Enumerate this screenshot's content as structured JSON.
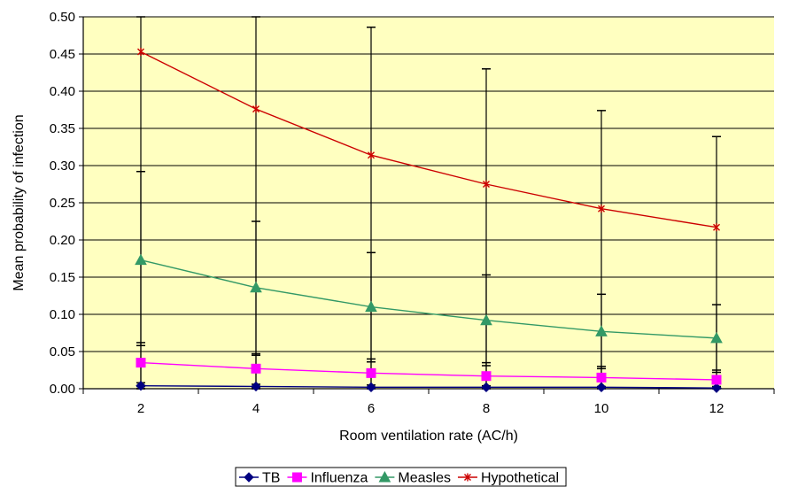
{
  "chart_data": {
    "type": "line",
    "title": "",
    "xlabel": "Room ventilation rate (AC/h)",
    "ylabel": "Mean probability of infection",
    "x": [
      2,
      4,
      6,
      8,
      10,
      12
    ],
    "x_tick_labels": [
      "2",
      "4",
      "6",
      "8",
      "10",
      "12"
    ],
    "y_tick_labels": [
      "0.00",
      "0.05",
      "0.10",
      "0.15",
      "0.20",
      "0.25",
      "0.30",
      "0.35",
      "0.40",
      "0.45",
      "0.50"
    ],
    "ylim": [
      0,
      0.5
    ],
    "grid": "horizontal",
    "legend_position": "bottom",
    "plot_background": "#ffffc0",
    "series": [
      {
        "name": "TB",
        "color": "#000080",
        "marker": "diamond",
        "values": [
          0.004,
          0.003,
          0.002,
          0.002,
          0.002,
          0.001
        ],
        "error_upper": [
          0.008,
          0.006,
          0.005,
          0.004,
          0.003,
          0.003
        ],
        "error_lower": [
          0.0,
          0.0,
          0.0,
          0.0,
          0.0,
          0.0
        ]
      },
      {
        "name": "Influenza",
        "color": "#ff00ff",
        "marker": "square",
        "values": [
          0.035,
          0.027,
          0.021,
          0.017,
          0.015,
          0.012
        ],
        "error_upper": [
          0.062,
          0.047,
          0.04,
          0.035,
          0.03,
          0.025
        ],
        "error_lower": [
          0.003,
          0.002,
          0.002,
          0.001,
          0.001,
          0.001
        ]
      },
      {
        "name": "Measles",
        "color": "#339966",
        "marker": "triangle",
        "values": [
          0.173,
          0.136,
          0.11,
          0.092,
          0.077,
          0.068
        ],
        "error_upper": [
          0.292,
          0.225,
          0.183,
          0.153,
          0.127,
          0.113
        ],
        "error_lower": [
          0.058,
          0.045,
          0.036,
          0.031,
          0.027,
          0.022
        ]
      },
      {
        "name": "Hypothetical",
        "color": "#cc0000",
        "marker": "star",
        "values": [
          0.453,
          0.376,
          0.314,
          0.275,
          0.242,
          0.217
        ],
        "error_upper": [
          0.5,
          0.5,
          0.486,
          0.43,
          0.374,
          0.339
        ],
        "error_lower": [
          0.0,
          0.0,
          0.0,
          0.0,
          0.0,
          0.0
        ]
      }
    ]
  }
}
